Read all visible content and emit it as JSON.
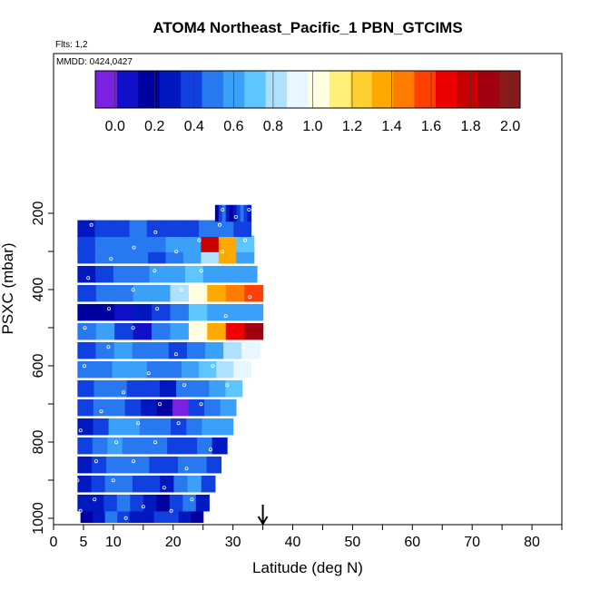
{
  "chart_data": {
    "type": "heatmap",
    "title": "ATOM4 Northeast_Pacific_1 PBN_GTCIMS",
    "flights_note": "Flts: 1,2",
    "dates_note": "MMDD: 0424,0427",
    "xlabel": "Latitude (deg N)",
    "ylabel": "PSXC (mbar)",
    "xlim": [
      0,
      85
    ],
    "ylim": [
      1000,
      80
    ],
    "y_reversed": true,
    "x_ticks": [
      0,
      5,
      10,
      20,
      30,
      40,
      50,
      60,
      70,
      80
    ],
    "x_minor_ticks": [
      15,
      25,
      35,
      45,
      55,
      65,
      75,
      85
    ],
    "y_ticks": [
      200,
      400,
      600,
      800,
      1000
    ],
    "y_minor_ticks": [
      300,
      500,
      700,
      900
    ],
    "colorbar": {
      "ticks": [
        "0.0",
        "0.2",
        "0.4",
        "0.6",
        "0.8",
        "1.0",
        "1.2",
        "1.4",
        "1.6",
        "1.8",
        "2.0"
      ],
      "range": [
        -0.1,
        2.05
      ],
      "colors": [
        "#7b22e0",
        "#1010c8",
        "#0000a0",
        "#0018c0",
        "#1040e0",
        "#2878f0",
        "#3aa0f8",
        "#5ec6ff",
        "#aee0ff",
        "#e8f6ff",
        "#ffffe0",
        "#fff07a",
        "#ffd030",
        "#ffa800",
        "#ff7c00",
        "#ff4000",
        "#ee0000",
        "#c80000",
        "#a00010",
        "#8a1a1a"
      ]
    },
    "arrow_latitude": 35,
    "layers": [
      {
        "p": 990,
        "lat": [
          4.5,
          25
        ],
        "values": [
          0.2,
          0.3,
          0.5,
          0.4,
          0.3,
          0.25,
          0.35,
          0.4,
          0.3,
          0.2
        ]
      },
      {
        "p": 960,
        "lat": [
          4,
          26
        ],
        "values": [
          0.25,
          0.3,
          0.4,
          0.45,
          0.35,
          0.3,
          0.2,
          0.4,
          0.5,
          0.3
        ]
      },
      {
        "p": 910,
        "lat": [
          4,
          27
        ],
        "values": [
          0.3,
          0.35,
          0.45,
          0.5,
          0.4,
          0.35,
          0.3,
          0.45,
          0.55,
          0.4
        ]
      },
      {
        "p": 860,
        "lat": [
          4,
          28
        ],
        "values": [
          0.3,
          0.4,
          0.5,
          0.45,
          0.5,
          0.4,
          0.35,
          0.45,
          0.5,
          0.35
        ]
      },
      {
        "p": 810,
        "lat": [
          4,
          29
        ],
        "values": [
          0.35,
          0.45,
          0.55,
          0.5,
          0.45,
          0.5,
          0.4,
          0.35,
          0.45,
          0.3
        ]
      },
      {
        "p": 760,
        "lat": [
          4,
          30
        ],
        "values": [
          0.3,
          0.4,
          0.6,
          0.55,
          0.5,
          0.45,
          0.4,
          0.5,
          0.55,
          0.6
        ]
      },
      {
        "p": 710,
        "lat": [
          4,
          30.5
        ],
        "values": [
          0.4,
          0.45,
          0.5,
          0.4,
          0.3,
          0.2,
          0.0,
          0.35,
          0.5,
          0.6
        ]
      },
      {
        "p": 660,
        "lat": [
          4,
          31.5
        ],
        "values": [
          0.4,
          0.5,
          0.45,
          0.4,
          0.35,
          0.3,
          0.45,
          0.5,
          0.6,
          0.75
        ]
      },
      {
        "p": 610,
        "lat": [
          4,
          33
        ],
        "values": [
          0.45,
          0.5,
          0.55,
          0.6,
          0.5,
          0.45,
          0.6,
          0.7,
          0.85,
          0.95
        ]
      },
      {
        "p": 560,
        "lat": [
          4,
          34.5
        ],
        "values": [
          0.4,
          0.5,
          0.55,
          0.5,
          0.45,
          0.4,
          0.5,
          0.65,
          0.8,
          0.9
        ]
      },
      {
        "p": 510,
        "lat": [
          4,
          35
        ],
        "values": [
          0.5,
          0.6,
          0.35,
          0.1,
          0.5,
          0.6,
          1.0,
          1.4,
          1.7,
          1.85
        ]
      },
      {
        "p": 460,
        "lat": [
          4,
          35
        ],
        "values": [
          0.15,
          0.2,
          0.1,
          0.3,
          0.4,
          0.5,
          0.7,
          0.6,
          0.55,
          0.6
        ]
      },
      {
        "p": 410,
        "lat": [
          4,
          35
        ],
        "values": [
          0.35,
          0.45,
          0.5,
          0.55,
          0.6,
          0.8,
          1.0,
          1.3,
          1.5,
          1.6
        ]
      },
      {
        "p": 360,
        "lat": [
          4,
          34
        ],
        "values": [
          0.3,
          0.4,
          0.45,
          0.5,
          0.55,
          0.65,
          0.7,
          0.6,
          0.6,
          0.65
        ]
      },
      {
        "p": 310,
        "lat": [
          4,
          33.5
        ],
        "values": [
          0.4,
          0.5,
          0.45,
          0.5,
          0.4,
          0.5,
          0.6,
          0.8,
          1.4,
          0.6
        ]
      },
      {
        "p": 280,
        "lat": [
          4,
          33.5
        ],
        "values": [
          0.4,
          0.45,
          0.5,
          0.45,
          0.5,
          0.55,
          0.6,
          1.8,
          1.4,
          0.7
        ]
      },
      {
        "p": 240,
        "lat": [
          4,
          33
        ],
        "values": [
          0.3,
          0.35,
          0.4,
          0.45,
          0.4,
          0.35,
          0.4,
          0.5,
          0.45,
          0.4
        ]
      },
      {
        "p": 200,
        "lat": [
          27,
          33
        ],
        "values": [
          0.2,
          0.4,
          0.5,
          0.3,
          0.2,
          0.3,
          0.4,
          0.5,
          0.4,
          0.3
        ]
      }
    ]
  }
}
